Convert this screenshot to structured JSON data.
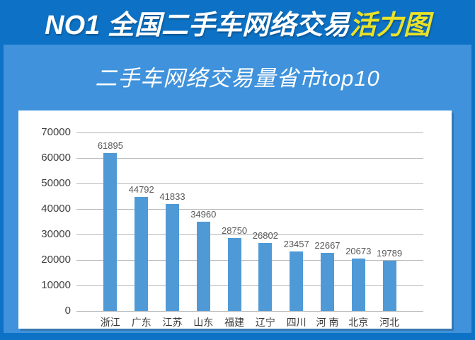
{
  "header": {
    "title_main": "NO1 全国二手车网络交易",
    "title_accent": "活力图"
  },
  "subtitle": "二手车网络交易量省市top10",
  "colors": {
    "background_dark_blue": "#0d72c5",
    "panel_light_blue": "#3f92db",
    "title_accent_yellow": "#e9e228",
    "bar_blue": "#4f9ad6",
    "gridline_gray": "#b4b8bb",
    "value_label_gray": "#595959",
    "axis_label_dark": "#404040",
    "card_white": "#ffffff"
  },
  "chart_data": {
    "type": "bar",
    "title": "二手车网络交易量省市top10",
    "categories": [
      "浙江",
      "广东",
      "江苏",
      "山东",
      "福建",
      "辽宁",
      "四川",
      "河 南",
      "北京",
      "河北"
    ],
    "values": [
      61895,
      44792,
      41833,
      34960,
      28750,
      26802,
      23457,
      22667,
      20673,
      19789
    ],
    "xlabel": "",
    "ylabel": "",
    "ylim": [
      0,
      70000
    ],
    "y_ticks": [
      0,
      10000,
      20000,
      30000,
      40000,
      50000,
      60000,
      70000
    ],
    "grid": "horizontal",
    "legend": "none",
    "data_labels": "above-bars"
  }
}
